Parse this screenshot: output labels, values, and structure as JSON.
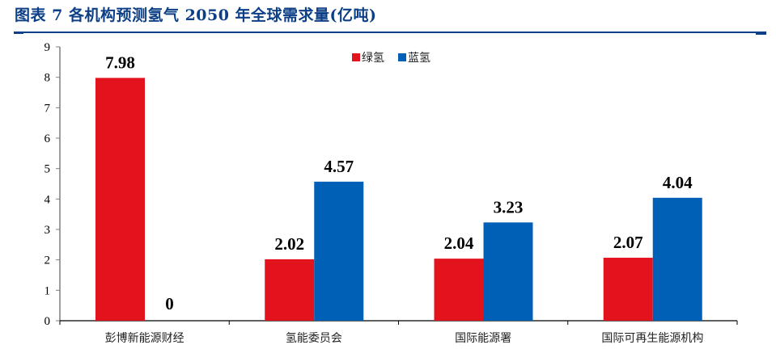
{
  "title": "图表 7 各机构预测氢气 2050 年全球需求量(亿吨)",
  "colors": {
    "title": "#0d3f87",
    "green_hydrogen": "#e3131e",
    "blue_hydrogen": "#0060b6"
  },
  "chart_data": {
    "type": "bar",
    "title": "各机构预测氢气 2050 年全球需求量(亿吨)",
    "xlabel": "",
    "ylabel": "",
    "ylim": [
      0,
      9
    ],
    "yticks": [
      0,
      1,
      2,
      3,
      4,
      5,
      6,
      7,
      8,
      9
    ],
    "grid": false,
    "legend_position": "top-center",
    "categories": [
      "彭博新能源财经",
      "氢能委员会",
      "国际能源署",
      "国际可再生能源机构"
    ],
    "series": [
      {
        "name": "绿氢",
        "color": "#e3131e",
        "values": [
          7.98,
          2.02,
          2.04,
          2.07
        ]
      },
      {
        "name": "蓝氢",
        "color": "#0060b6",
        "values": [
          0,
          4.57,
          3.23,
          4.04
        ]
      }
    ],
    "data_labels": [
      [
        "7.98",
        "2.02",
        "2.04",
        "2.07"
      ],
      [
        "0",
        "4.57",
        "3.23",
        "4.04"
      ]
    ]
  }
}
